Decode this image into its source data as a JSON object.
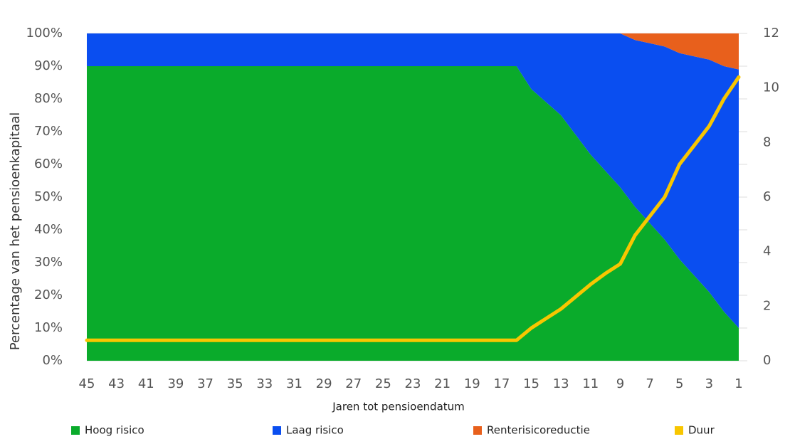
{
  "chart_data": {
    "type": "stacked_area_line",
    "x_label": "Jaren tot pensioendatum",
    "y_label": "Percentage van het pensioenkapitaal",
    "x": [
      45,
      44,
      43,
      42,
      41,
      40,
      39,
      38,
      37,
      36,
      35,
      34,
      33,
      32,
      31,
      30,
      29,
      28,
      27,
      26,
      25,
      24,
      23,
      22,
      21,
      20,
      19,
      18,
      17,
      16,
      15,
      14,
      13,
      12,
      11,
      10,
      9,
      8,
      7,
      6,
      5,
      4,
      3,
      2,
      1
    ],
    "xlim": [
      45,
      1
    ],
    "xticks": [
      45,
      43,
      41,
      39,
      37,
      35,
      33,
      31,
      29,
      27,
      25,
      23,
      21,
      19,
      17,
      15,
      13,
      11,
      9,
      7,
      5,
      3,
      1
    ],
    "ylim": [
      0,
      100
    ],
    "yticks": [
      {
        "value": 0,
        "label": "0%"
      },
      {
        "value": 10,
        "label": "10%"
      },
      {
        "value": 20,
        "label": "20%"
      },
      {
        "value": 30,
        "label": "30%"
      },
      {
        "value": 40,
        "label": "40%"
      },
      {
        "value": 50,
        "label": "50%"
      },
      {
        "value": 60,
        "label": "60%"
      },
      {
        "value": 70,
        "label": "70%"
      },
      {
        "value": 80,
        "label": "80%"
      },
      {
        "value": 90,
        "label": "90%"
      },
      {
        "value": 100,
        "label": "100%"
      }
    ],
    "y2lim": [
      0,
      12
    ],
    "y2ticks": [
      0,
      2,
      4,
      6,
      8,
      10,
      12
    ],
    "grid": true,
    "legend": "bottom",
    "series": [
      {
        "name": "Hoog risico",
        "color": "#0aab2b",
        "values": [
          90,
          90,
          90,
          90,
          90,
          90,
          90,
          90,
          90,
          90,
          90,
          90,
          90,
          90,
          90,
          90,
          90,
          90,
          90,
          90,
          90,
          90,
          90,
          90,
          90,
          90,
          90,
          90,
          90,
          90,
          83,
          79,
          75,
          69,
          63,
          58,
          53,
          47,
          42,
          37,
          31,
          26,
          21,
          15,
          10
        ]
      },
      {
        "name": "Laag risico",
        "color": "#0a4ef0",
        "values": [
          10,
          10,
          10,
          10,
          10,
          10,
          10,
          10,
          10,
          10,
          10,
          10,
          10,
          10,
          10,
          10,
          10,
          10,
          10,
          10,
          10,
          10,
          10,
          10,
          10,
          10,
          10,
          10,
          10,
          10,
          17,
          21,
          25,
          31,
          37,
          42,
          47,
          51,
          55,
          59,
          63,
          67,
          71,
          75,
          79
        ]
      },
      {
        "name": "Renterisicoreductie",
        "color": "#e8601c",
        "values": [
          0,
          0,
          0,
          0,
          0,
          0,
          0,
          0,
          0,
          0,
          0,
          0,
          0,
          0,
          0,
          0,
          0,
          0,
          0,
          0,
          0,
          0,
          0,
          0,
          0,
          0,
          0,
          0,
          0,
          0,
          0,
          0,
          0,
          0,
          0,
          0,
          0,
          2,
          3,
          4,
          6,
          7,
          8,
          10,
          11
        ]
      },
      {
        "name": "Duur",
        "color": "#f8c600",
        "axis": "y2",
        "values": [
          0.75,
          0.75,
          0.75,
          0.75,
          0.75,
          0.75,
          0.75,
          0.75,
          0.75,
          0.75,
          0.75,
          0.75,
          0.75,
          0.75,
          0.75,
          0.75,
          0.75,
          0.75,
          0.75,
          0.75,
          0.75,
          0.75,
          0.75,
          0.75,
          0.75,
          0.75,
          0.75,
          0.75,
          0.75,
          0.75,
          1.2,
          1.55,
          1.9,
          2.35,
          2.8,
          3.2,
          3.55,
          4.6,
          5.3,
          6.0,
          7.2,
          7.9,
          8.6,
          9.6,
          10.4
        ]
      }
    ]
  }
}
